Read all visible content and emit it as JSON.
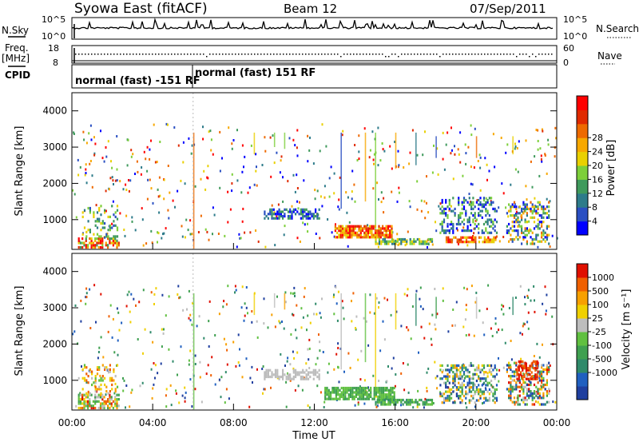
{
  "header": {
    "title_left": "Syowa East (fitACF)",
    "title_center": "Beam 12",
    "title_right": "07/Sep/2011"
  },
  "nsky_panel": {
    "label": "N.Sky",
    "ytick_top": "10^5",
    "ytick_bottom": "10^0",
    "right_label": "N.Search",
    "rtick_top": "10^5",
    "rtick_bottom": "10^0"
  },
  "freq_panel": {
    "label_line1": "Freq.",
    "label_line2": "[MHz]",
    "ytick_top": "18",
    "ytick_bottom": "8",
    "right_label": "Nave",
    "rtick_top": "60",
    "rtick_bottom": "0"
  },
  "cpid_panel": {
    "label": "CPID",
    "program1": "normal (fast) -151 RF",
    "program2": "normal (fast) 151 RF"
  },
  "chart_data": [
    {
      "type": "heatmap",
      "name": "power",
      "ylabel": "Slant Range [km]",
      "yticks": [
        "1000",
        "2000",
        "3000",
        "4000"
      ],
      "ylim": [
        180,
        4500
      ],
      "xlim": [
        0,
        24
      ],
      "colorbar": {
        "label": "Power [dB]",
        "ticks": [
          "4",
          "8",
          "12",
          "16",
          "20",
          "24",
          "28"
        ],
        "colors": [
          "#0000ff",
          "#2a4fc2",
          "#2d7b8a",
          "#3f9a5c",
          "#7dcf3a",
          "#e9d000",
          "#f7a800",
          "#ee6a00",
          "#e02a00",
          "#ff0000"
        ]
      }
    },
    {
      "type": "heatmap",
      "name": "velocity",
      "ylabel": "Slant Range [km]",
      "yticks": [
        "1000",
        "2000",
        "3000",
        "4000"
      ],
      "ylim": [
        180,
        4500
      ],
      "xlim": [
        0,
        24
      ],
      "xticks": [
        "00:00",
        "04:00",
        "08:00",
        "12:00",
        "16:00",
        "20:00",
        "00:00"
      ],
      "xlabel": "Time UT",
      "colorbar": {
        "label": "Velocity [m s⁻¹]",
        "ticks": [
          "1000",
          "500",
          "100",
          "25",
          "-25",
          "-100",
          "-500",
          "-1000"
        ],
        "colors": [
          "#1f3f9f",
          "#2060c0",
          "#2f8a6a",
          "#3fa050",
          "#60c040",
          "#bdbdbd",
          "#f0d000",
          "#f7a000",
          "#f06000",
          "#e01000"
        ]
      }
    }
  ]
}
